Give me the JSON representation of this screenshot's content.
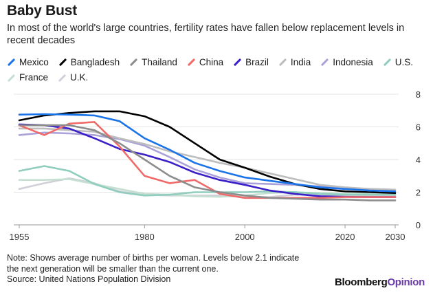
{
  "title": "Baby Bust",
  "subtitle": "In most of the world's large countries, fertility rates have fallen below replacement levels in recent decades",
  "note": "Note: Shows average number of births per woman. Levels below 2.1 indicate the next generation will be smaller than the current one.",
  "source": "Source: United Nations Population Division",
  "brand": {
    "part1": "Bloomberg",
    "part2": "Opinion"
  },
  "watermark": "Bloomberg",
  "chart_data": {
    "type": "line",
    "x": [
      1955,
      1960,
      1965,
      1970,
      1975,
      1980,
      1985,
      1990,
      1995,
      2000,
      2005,
      2010,
      2015,
      2020,
      2025,
      2030
    ],
    "xticks": [
      "1955",
      "1980",
      "2000",
      "2020",
      "2030"
    ],
    "xtick_values": [
      1955,
      1980,
      2000,
      2020,
      2030
    ],
    "yticks": [
      "0",
      "2",
      "4",
      "6",
      "8"
    ],
    "ytick_values": [
      0,
      2,
      4,
      6,
      8
    ],
    "xlim": [
      1955,
      2030
    ],
    "ylim": [
      0,
      8
    ],
    "grid": true,
    "legend_position": "top",
    "series": [
      {
        "name": "Mexico",
        "color": "#1a73e8",
        "values": [
          6.75,
          6.78,
          6.75,
          6.7,
          6.35,
          5.3,
          4.6,
          3.8,
          3.3,
          2.9,
          2.7,
          2.5,
          2.3,
          2.2,
          2.1,
          2.05
        ]
      },
      {
        "name": "Bangladesh",
        "color": "#000000",
        "values": [
          6.4,
          6.7,
          6.85,
          6.95,
          6.95,
          6.65,
          6.0,
          5.0,
          4.0,
          3.5,
          2.95,
          2.5,
          2.2,
          2.05,
          2.0,
          1.95
        ]
      },
      {
        "name": "Thailand",
        "color": "#8c8c8c",
        "values": [
          6.1,
          6.1,
          6.1,
          5.8,
          5.0,
          4.0,
          3.0,
          2.3,
          2.0,
          1.8,
          1.65,
          1.6,
          1.55,
          1.55,
          1.5,
          1.5
        ]
      },
      {
        "name": "China",
        "color": "#f06a6a",
        "values": [
          6.1,
          5.5,
          6.2,
          6.3,
          4.8,
          3.0,
          2.55,
          2.75,
          1.9,
          1.65,
          1.65,
          1.65,
          1.65,
          1.7,
          1.7,
          1.7
        ]
      },
      {
        "name": "Brazil",
        "color": "#3a1fc9",
        "values": [
          6.15,
          6.1,
          5.9,
          5.3,
          4.65,
          4.3,
          3.85,
          3.2,
          2.75,
          2.45,
          2.1,
          1.9,
          1.75,
          1.72,
          1.7,
          1.7
        ]
      },
      {
        "name": "India",
        "color": "#bdbdbd",
        "values": [
          5.9,
          5.9,
          5.8,
          5.7,
          5.3,
          4.95,
          4.5,
          4.15,
          3.8,
          3.5,
          3.15,
          2.8,
          2.45,
          2.3,
          2.2,
          2.15
        ]
      },
      {
        "name": "Indonesia",
        "color": "#a9a2d9",
        "values": [
          5.5,
          5.65,
          5.6,
          5.5,
          5.25,
          4.85,
          4.15,
          3.4,
          2.9,
          2.55,
          2.5,
          2.45,
          2.35,
          2.25,
          2.2,
          2.15
        ]
      },
      {
        "name": "U.S.",
        "color": "#8fcdbd",
        "values": [
          3.3,
          3.6,
          3.3,
          2.5,
          2.0,
          1.8,
          1.85,
          2.0,
          2.0,
          2.0,
          2.05,
          2.0,
          1.9,
          1.85,
          1.85,
          1.85
        ]
      },
      {
        "name": "France",
        "color": "#c5e0d2",
        "values": [
          2.75,
          2.75,
          2.8,
          2.5,
          2.2,
          1.9,
          1.85,
          1.75,
          1.72,
          1.8,
          1.95,
          2.0,
          1.95,
          1.9,
          1.88,
          1.87
        ]
      },
      {
        "name": "U.K.",
        "color": "#d0d0d8",
        "values": [
          2.2,
          2.55,
          2.85,
          2.55,
          2.05,
          1.85,
          1.8,
          1.8,
          1.8,
          1.7,
          1.7,
          1.85,
          1.85,
          1.8,
          1.78,
          1.78
        ]
      }
    ]
  }
}
